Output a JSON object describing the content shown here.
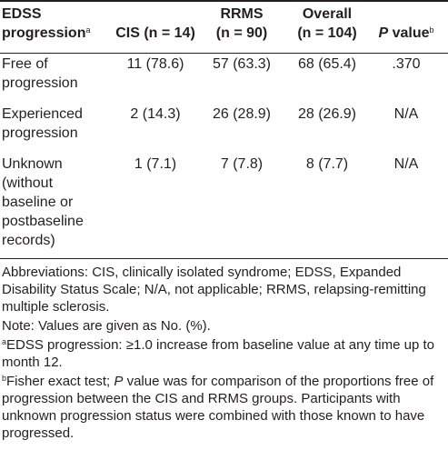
{
  "table": {
    "headers": {
      "col1_line1": "EDSS",
      "col1_line2": "progression",
      "col1_sup": "a",
      "col2": "CIS (n = 14)",
      "col3_line1": "RRMS",
      "col3_line2": "(n = 90)",
      "col4_line1": "Overall",
      "col4_line2": "(n = 104)",
      "col5_italic": "P",
      "col5_rest": " value",
      "col5_sup": "b"
    },
    "rows": [
      {
        "label_lines": [
          "Free of",
          "progression"
        ],
        "cis": "11 (78.6)",
        "rrms": "57 (63.3)",
        "overall": "68 (65.4)",
        "p": ".370"
      },
      {
        "label_lines": [
          "Experienced",
          "progression"
        ],
        "cis": "2 (14.3)",
        "rrms": "26 (28.9)",
        "overall": "28 (26.9)",
        "p": "N/A"
      },
      {
        "label_lines": [
          "Unknown",
          "(without",
          "baseline or",
          "postbaseline",
          "records)"
        ],
        "cis": "1 (7.1)",
        "rrms": "7 (7.8)",
        "overall": "8 (7.7)",
        "p": "N/A"
      }
    ]
  },
  "notes": {
    "abbreviations": "Abbreviations: CIS, clinically isolated syndrome; EDSS, Expanded Disability Status Scale; N/A, not applicable; RRMS, relapsing-remitting multiple sclerosis.",
    "note": "Note: Values are given as No. (%).",
    "footnote_a_mark": "a",
    "footnote_a": "EDSS progression: ≥1.0 increase from baseline value at any time up to month 12.",
    "footnote_b_mark": "b",
    "footnote_b_pre": "Fisher exact test; ",
    "footnote_b_italic": "P",
    "footnote_b_post": " value was for comparison of the proportions free of progression between the CIS and RRMS groups. Participants with unknown progression status were combined with those known to have progressed."
  }
}
